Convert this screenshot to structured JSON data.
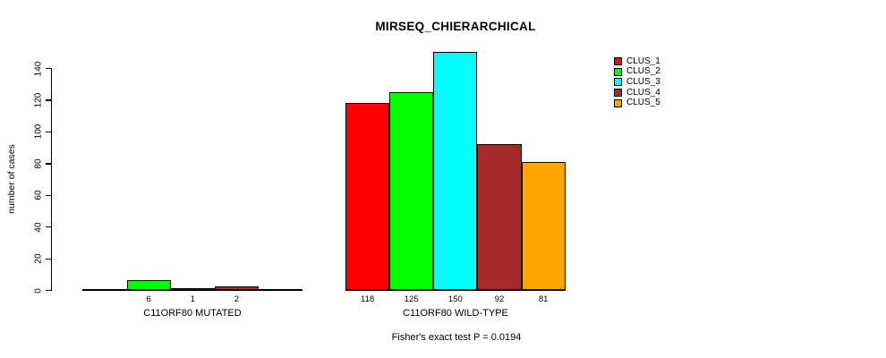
{
  "chart_data": {
    "type": "bar",
    "title": "MIRSEQ_CHIERARCHICAL",
    "ylabel": "number of cases",
    "xlabel": "",
    "annotation": "Fisher's exact test P = 0.0194",
    "ylim": [
      0,
      150
    ],
    "yticks": [
      0,
      20,
      40,
      60,
      80,
      100,
      120,
      140
    ],
    "grid": false,
    "legend_position": "top-right",
    "legend_entries": [
      "CLUS_1",
      "CLUS_2",
      "CLUS_3",
      "CLUS_4",
      "CLUS_5"
    ],
    "categories": [
      "C11ORF80 MUTATED",
      "C11ORF80 WILD-TYPE"
    ],
    "series": [
      {
        "name": "CLUS_1",
        "color": "#FF0000",
        "values": [
          0,
          118
        ]
      },
      {
        "name": "CLUS_2",
        "color": "#00FF00",
        "values": [
          6,
          125
        ]
      },
      {
        "name": "CLUS_3",
        "color": "#00FFFF",
        "values": [
          1,
          150
        ]
      },
      {
        "name": "CLUS_4",
        "color": "#A52A2A",
        "values": [
          2,
          92
        ]
      },
      {
        "name": "CLUS_5",
        "color": "#FFA500",
        "values": [
          0,
          81
        ]
      }
    ],
    "bar_value_labels": [
      "6",
      "1",
      "2",
      "118",
      "125",
      "150",
      "92",
      "81"
    ],
    "axis_color": "#000000",
    "background_color": "#FFFFFF"
  }
}
